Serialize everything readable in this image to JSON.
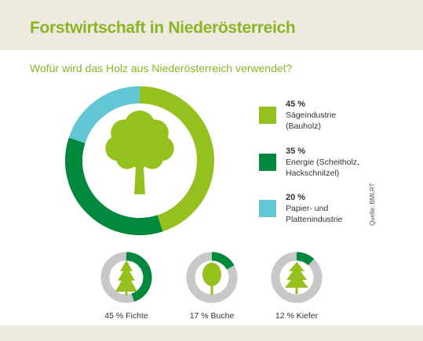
{
  "title": "Forstwirtschaft in Niederösterreich",
  "subtitle": "Wofür wird das Holz aus Niederösterreich verwendet?",
  "source": "Quelle: BMLRT",
  "colors": {
    "title": "#8ab526",
    "saege": "#95c11f",
    "energie": "#00893d",
    "papier": "#63c6d5",
    "ring_bg": "#c8c8c8",
    "tree": "#95c11f"
  },
  "chart_data": [
    {
      "type": "pie",
      "title": "Wofür wird das Holz aus Niederösterreich verwendet?",
      "style": "donut",
      "series": [
        {
          "name": "Sägeindustrie (Bauholz)",
          "value_label": "45 %",
          "value": 45,
          "color": "#95c11f"
        },
        {
          "name": "Energie (Scheitholz, Hackschnitzel)",
          "value_label": "35 %",
          "value": 35,
          "color": "#00893d"
        },
        {
          "name": "Papier- und Plattenindustrie",
          "value_label": "20 %",
          "value": 20,
          "color": "#63c6d5"
        }
      ]
    },
    {
      "type": "pie",
      "style": "small-donuts",
      "items": [
        {
          "label": "45 % Fichte",
          "value": 45,
          "icon": "spruce-icon"
        },
        {
          "label": "17 % Buche",
          "value": 17,
          "icon": "beech-icon"
        },
        {
          "label": "12 % Kiefer",
          "value": 12,
          "icon": "pine-icon"
        }
      ]
    }
  ],
  "legend": [
    {
      "pct": "45 %",
      "label": "Sägeindustrie\n(Bauholz)"
    },
    {
      "pct": "35 %",
      "label": "Energie (Scheitholz,\nHackschnitzel)"
    },
    {
      "pct": "20 %",
      "label": "Papier- und\nPlattenindustrie"
    }
  ]
}
